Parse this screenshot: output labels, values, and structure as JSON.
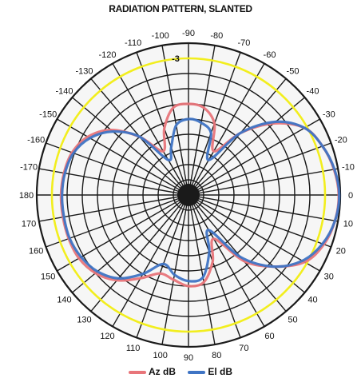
{
  "chart_data": {
    "type": "polar-line",
    "title": "RADIATION PATTERN, SLANTED",
    "angle_unit": "degrees",
    "angle_tick_labels": [
      -180,
      -170,
      -160,
      -150,
      -140,
      -130,
      -120,
      -110,
      -100,
      -90,
      -80,
      -70,
      -60,
      -50,
      -40,
      -30,
      -20,
      -10,
      0,
      10,
      20,
      30,
      40,
      50,
      60,
      70,
      80,
      90,
      100,
      110,
      120,
      130,
      140,
      150,
      160,
      170,
      180
    ],
    "radial_ticks_db": [
      0,
      -3,
      -6,
      -9,
      -12,
      -15,
      -18,
      -21,
      -24,
      -27,
      -30
    ],
    "radial_tick_labels_shown": [
      "-3"
    ],
    "radial_range_db": [
      -30,
      0
    ],
    "reference_circle_db": -3,
    "reference_circle_color": "#f2ee1e",
    "grid": true,
    "legend_position": "bottom",
    "series": [
      {
        "name": "Az dB",
        "color": "#e8757a",
        "angles": [
          0,
          10,
          20,
          30,
          40,
          50,
          60,
          70,
          80,
          90,
          100,
          110,
          120,
          130,
          140,
          150,
          160,
          170,
          180,
          190,
          200,
          210,
          220,
          230,
          240,
          250,
          260,
          270,
          280,
          290,
          300,
          310,
          320,
          330,
          340,
          350
        ],
        "values_db": [
          -0.3,
          -0.6,
          -1.5,
          -3.5,
          -8,
          -13,
          -20,
          -16,
          -12.5,
          -12,
          -13,
          -13.5,
          -11,
          -8,
          -6,
          -5,
          -4.8,
          -4.8,
          -4.8,
          -5,
          -5.5,
          -7,
          -10,
          -15,
          -20,
          -16,
          -12.5,
          -12,
          -12.5,
          -15,
          -20,
          -14,
          -8,
          -3.5,
          -1.8,
          -0.8
        ]
      },
      {
        "name": "El dB",
        "color": "#3f74c4",
        "angles": [
          0,
          10,
          20,
          30,
          40,
          50,
          60,
          70,
          80,
          90,
          100,
          110,
          120,
          130,
          140,
          150,
          160,
          170,
          180,
          190,
          200,
          210,
          220,
          230,
          240,
          250,
          260,
          270,
          280,
          290,
          300,
          310,
          320,
          330,
          340,
          350
        ],
        "values_db": [
          -0.2,
          -0.6,
          -1.8,
          -4,
          -8,
          -14,
          -22,
          -18,
          -13.5,
          -13,
          -14,
          -15.5,
          -12,
          -8.5,
          -6.5,
          -5.5,
          -5,
          -5,
          -5,
          -5.2,
          -5.8,
          -7.5,
          -10.5,
          -15,
          -22,
          -20,
          -16,
          -15,
          -15.5,
          -17,
          -22,
          -14,
          -7.5,
          -3.5,
          -1.8,
          -0.7
        ]
      }
    ]
  },
  "legend": {
    "az_label": "Az dB",
    "el_label": "El dB"
  }
}
